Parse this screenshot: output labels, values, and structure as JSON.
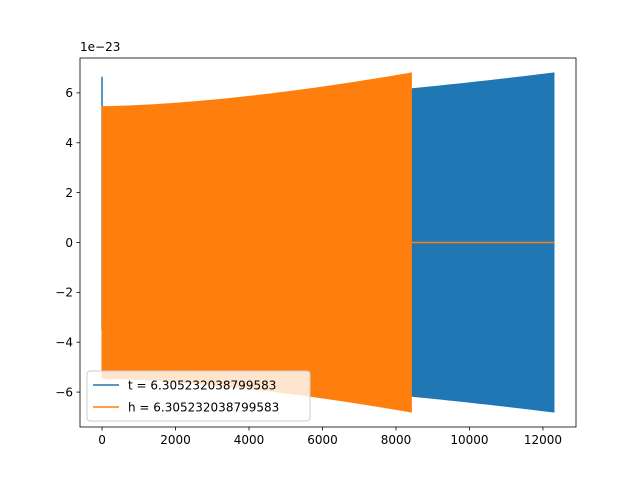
{
  "chart_data": {
    "type": "area",
    "title": "",
    "xlabel": "",
    "ylabel": "",
    "y_offset_text": "1e−23",
    "xlim": [
      -600,
      12900
    ],
    "ylim": [
      -7.4,
      7.4
    ],
    "x_ticks": [
      0,
      2000,
      4000,
      6000,
      8000,
      10000,
      12000
    ],
    "x_tick_labels": [
      "0",
      "2000",
      "4000",
      "6000",
      "8000",
      "10000",
      "12000"
    ],
    "y_ticks": [
      -6,
      -4,
      -2,
      0,
      2,
      4,
      6
    ],
    "y_tick_labels": [
      "−6",
      "−4",
      "−2",
      "0",
      "2",
      "4",
      "6"
    ],
    "grid": false,
    "legend_position": "lower-left",
    "series": [
      {
        "name": "t = 6.305232038799583",
        "color": "#1f77b4",
        "x_start": 0,
        "x_end": 12300,
        "envelope_start": 5.4,
        "envelope_end": 6.8,
        "initial_spike": [
          -3.5,
          6.65
        ]
      },
      {
        "name": "h = 6.305232038799583",
        "color": "#ff7f0e",
        "x_start": 0,
        "x_end": 8420,
        "envelope_start": 5.45,
        "envelope_end": 6.8,
        "flat_tail_x_end": 12300,
        "flat_tail_y": 0
      }
    ]
  }
}
